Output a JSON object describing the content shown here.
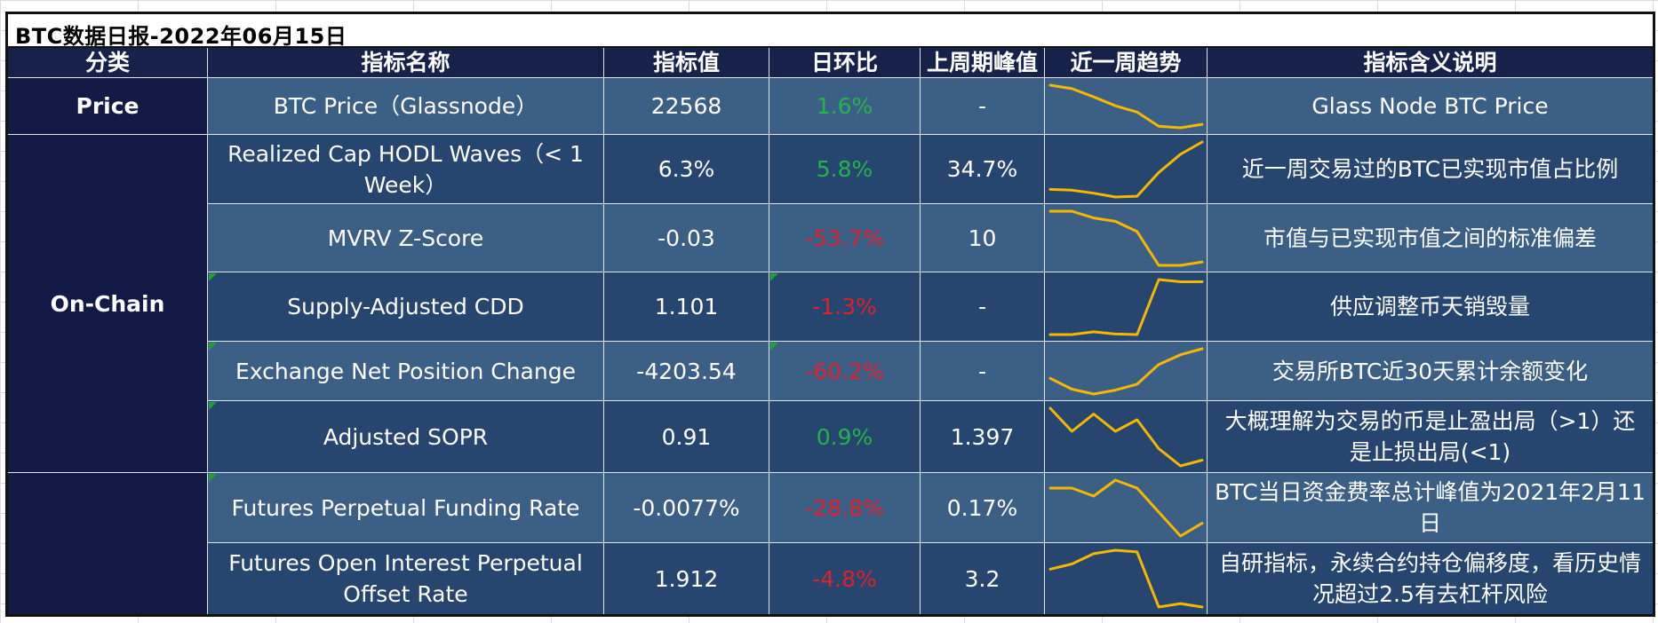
{
  "title": "BTC数据日报-2022年06月15日",
  "headers": [
    "分类",
    "指标名称",
    "指标值",
    "日环比",
    "上周期峰值",
    "近一周趋势",
    "指标含义说明"
  ],
  "colors": {
    "positive": "#23b34b",
    "negative": "#e0202a",
    "trend_line": "#f5b800",
    "header_bg": "#16224a"
  },
  "categories": [
    "Price",
    "On-Chain",
    ""
  ],
  "rows": [
    {
      "name": "BTC Price（Glassnode）",
      "value": "22568",
      "change": "1.6%",
      "change_dir": "up",
      "peak": "-",
      "trend": [
        9,
        8.3,
        6.6,
        4.8,
        3.5,
        0.6,
        0.3,
        1
      ],
      "desc": "Glass Node BTC Price"
    },
    {
      "name": "Realized Cap HODL Waves（< 1 Week）",
      "value": "6.3%",
      "change": "5.8%",
      "change_dir": "up",
      "peak": "34.7%",
      "trend": [
        0.9,
        0.85,
        0.65,
        0.4,
        0.45,
        2,
        3.2,
        4
      ],
      "desc": "近一周交易过的BTC已实现市值占比例"
    },
    {
      "name": "MVRV Z-Score",
      "value": "-0.03",
      "change": "-53.7%",
      "change_dir": "down",
      "peak": "10",
      "trend": [
        1,
        1,
        0.9,
        0.85,
        0.7,
        0.2,
        0.2,
        0.25
      ],
      "desc": "市值与已实现市值之间的标准偏差"
    },
    {
      "name": "Supply-Adjusted CDD",
      "value": "1.101",
      "change": "-1.3%",
      "change_dir": "down",
      "peak": "-",
      "trend": [
        0.5,
        0.5,
        0.75,
        0.55,
        0.5,
        5.5,
        5.3,
        5.3
      ],
      "desc": "供应调整币天销毁量"
    },
    {
      "name": "Exchange Net Position Change",
      "value": "-4203.54",
      "change": "-60.2%",
      "change_dir": "down",
      "peak": "-",
      "trend": [
        -1000,
        -1550,
        -1800,
        -1600,
        -1300,
        -300,
        200,
        500
      ],
      "desc": "交易所BTC近30天累计余额变化"
    },
    {
      "name": "Adjusted SOPR",
      "value": "0.91",
      "change": "0.9%",
      "change_dir": "up",
      "peak": "1.397",
      "trend": [
        1.04,
        1.0,
        1.03,
        1.0,
        1.02,
        0.97,
        0.94,
        0.95
      ],
      "desc": "大概理解为交易的币是止盈出局（>1）还是止损出局(<1)"
    },
    {
      "name": "Futures Perpetual Funding Rate",
      "value": "-0.0077%",
      "change": "-28.8%",
      "change_dir": "down",
      "peak": "0.17%",
      "trend": [
        0.01,
        0.01,
        0.005,
        0.015,
        0.01,
        -0.005,
        -0.02,
        -0.012
      ],
      "desc": "BTC当日资金费率总计峰值为2021年2月11日"
    },
    {
      "name": "Futures Open Interest Perpetual Offset Rate",
      "value": "1.912",
      "change": "-4.8%",
      "change_dir": "down",
      "peak": "3.2",
      "trend": [
        2.3,
        2.45,
        2.75,
        2.85,
        2.8,
        1.2,
        1.3,
        1.2
      ],
      "desc": "自研指标，永续合约持仓偏移度，看历史情况超过2.5有去杠杆风险"
    }
  ]
}
